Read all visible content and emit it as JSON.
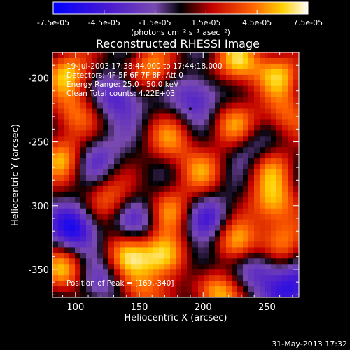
{
  "colorbar": {
    "tick_labels": [
      "-7.5e-05",
      "-4.5e-05",
      "-1.5e-05",
      "1.5e-05",
      "4.5e-05",
      "7.5e-05"
    ],
    "tick_values": [
      -7.5e-05,
      -4.5e-05,
      -1.5e-05,
      1.5e-05,
      4.5e-05,
      7.5e-05
    ],
    "range": [
      -7.5e-05,
      7.5e-05
    ],
    "units_text": "(photons cm⁻² s⁻¹ asec⁻²)"
  },
  "info": {
    "time_range": "19-Jul-2003 17:38:44.000 to 17:44:18.000",
    "detectors": "Detectors: 4F 5F 6F 7F 8F, Att 0",
    "energy": "Energy Range: 25.0 - 50.0 keV",
    "algorithm": "Clean     Total counts: 4.22E+03",
    "peak": "Position of Peak = [169,-340]"
  },
  "footer": {
    "date": "31-May-2013 17:32"
  },
  "chart_data": {
    "type": "heatmap",
    "title": "Reconstructed RHESSI Image",
    "xlabel": "Heliocentric X (arcsec)",
    "ylabel": "Heliocentric Y (arcsec)",
    "xlim": [
      82,
      275
    ],
    "ylim": [
      -372,
      -180
    ],
    "xticks": [
      100,
      150,
      200,
      250
    ],
    "xtick_labels": [
      "100",
      "150",
      "200",
      "250"
    ],
    "yticks": [
      -200,
      -250,
      -300,
      -350
    ],
    "ytick_labels": [
      "-200",
      "-250",
      "-300",
      "-350"
    ],
    "colormap": "blue-purple-black-red-yellow-white",
    "value_range": [
      -7.5e-05,
      7.5e-05
    ],
    "peak_position": [
      169,
      -340
    ],
    "marker_position": [
      190,
      -224
    ],
    "grid": false,
    "legend": "colorbar-top",
    "blobs": [
      {
        "x": 95,
        "y": -196,
        "v": 5.5e-05
      },
      {
        "x": 160,
        "y": -193,
        "v": 5e-05
      },
      {
        "x": 227,
        "y": -188,
        "v": 6e-05
      },
      {
        "x": 260,
        "y": -197,
        "v": 5e-05
      },
      {
        "x": 100,
        "y": -228,
        "v": 4e-05
      },
      {
        "x": 175,
        "y": -248,
        "v": 4e-05
      },
      {
        "x": 225,
        "y": -236,
        "v": 4.5e-05
      },
      {
        "x": 265,
        "y": -230,
        "v": 4e-05
      },
      {
        "x": 90,
        "y": -262,
        "v": 5.5e-05
      },
      {
        "x": 200,
        "y": -272,
        "v": 4e-05
      },
      {
        "x": 250,
        "y": -268,
        "v": 5e-05
      },
      {
        "x": 125,
        "y": -294,
        "v": 4e-05
      },
      {
        "x": 175,
        "y": -303,
        "v": 4.5e-05
      },
      {
        "x": 255,
        "y": -298,
        "v": 5.5e-05
      },
      {
        "x": 92,
        "y": -350,
        "v": 5e-05
      },
      {
        "x": 140,
        "y": -337,
        "v": 5e-05
      },
      {
        "x": 170,
        "y": -340,
        "v": 7.5e-05
      },
      {
        "x": 225,
        "y": -330,
        "v": 6e-05
      },
      {
        "x": 262,
        "y": -328,
        "v": 4.5e-05
      },
      {
        "x": 210,
        "y": -367,
        "v": 6e-05
      },
      {
        "x": 150,
        "y": -368,
        "v": 4e-05
      },
      {
        "x": 135,
        "y": -215,
        "v": -4.5e-05
      },
      {
        "x": 195,
        "y": -215,
        "v": -4.5e-05
      },
      {
        "x": 240,
        "y": -258,
        "v": -4e-05
      },
      {
        "x": 115,
        "y": -262,
        "v": -3.5e-05
      },
      {
        "x": 100,
        "y": -318,
        "v": -6.5e-05
      },
      {
        "x": 150,
        "y": -312,
        "v": -3.5e-05
      },
      {
        "x": 205,
        "y": -310,
        "v": -4e-05
      },
      {
        "x": 245,
        "y": -350,
        "v": -4e-05
      },
      {
        "x": 270,
        "y": -365,
        "v": -5e-05
      },
      {
        "x": 120,
        "y": -360,
        "v": -3e-05
      },
      {
        "x": 200,
        "y": -345,
        "v": -3.5e-05
      }
    ]
  }
}
